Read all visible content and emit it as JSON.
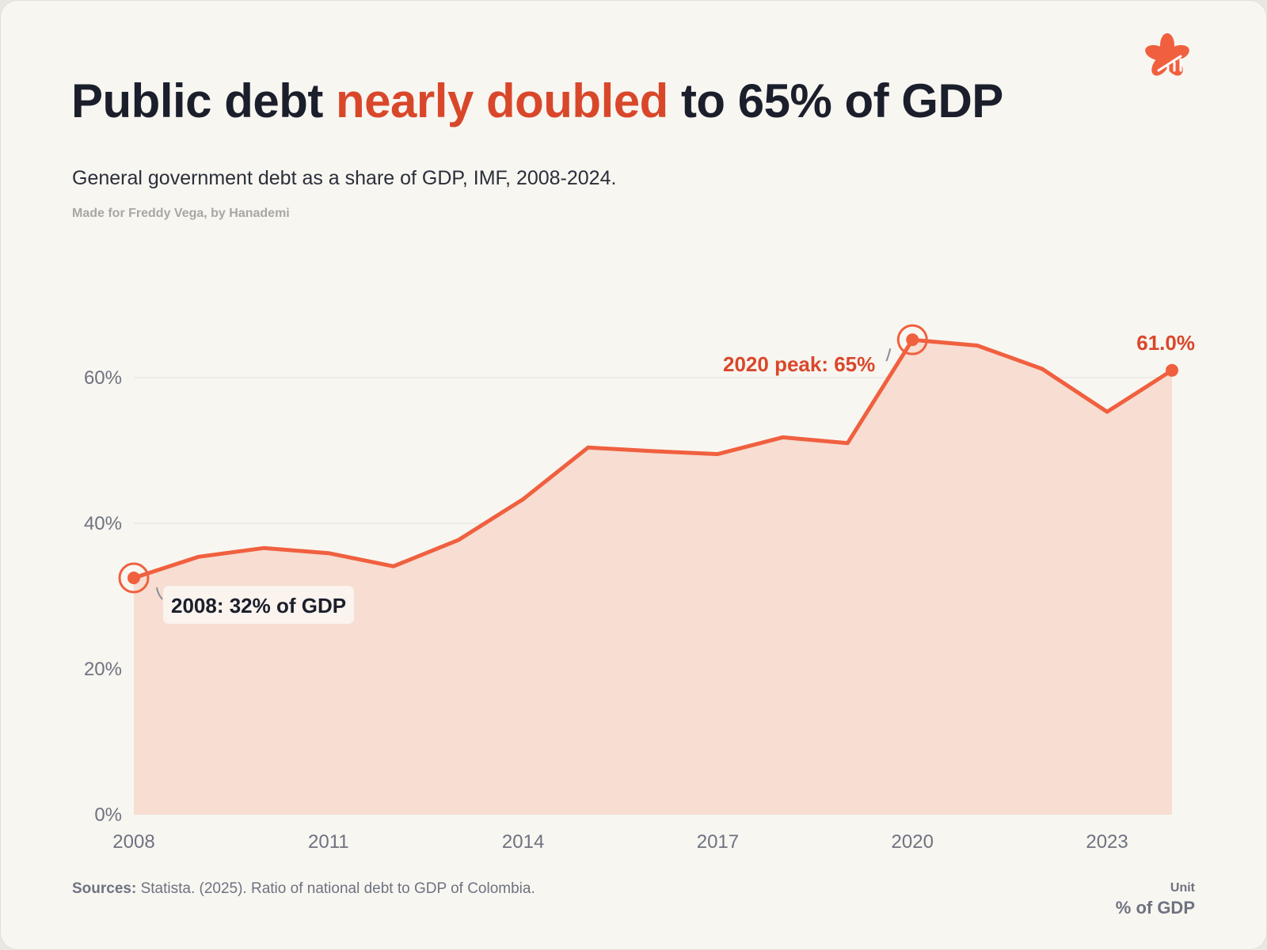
{
  "header": {
    "title_before": "Public debt ",
    "title_highlight": "nearly doubled",
    "title_after": " to 65% of GDP",
    "subtitle": "General government debt as a share of GDP, IMF, 2008-2024.",
    "credit": "Made for Freddy Vega, by Hanademi",
    "logo_icon": "flower-chart-logo-icon"
  },
  "footer": {
    "sources_label": "Sources:",
    "sources_text": " Statista. (2025). Ratio of national debt to GDP of Colombia.",
    "unit_label": "Unit",
    "unit_value": "% of GDP"
  },
  "colors": {
    "accent": "#f0603f",
    "accent_dark": "#d9472b",
    "area_fill": "#f7ddd2",
    "text_dark": "#1b1e2b",
    "axis_text": "#6f7280",
    "grid": "#e4e1da"
  },
  "chart_data": {
    "type": "area",
    "x": [
      2008,
      2009,
      2010,
      2011,
      2012,
      2013,
      2014,
      2015,
      2016,
      2017,
      2018,
      2019,
      2020,
      2021,
      2022,
      2023,
      2024
    ],
    "values": [
      32.5,
      35.4,
      36.6,
      35.9,
      34.1,
      37.7,
      43.3,
      50.4,
      49.9,
      49.5,
      51.8,
      51.0,
      65.2,
      64.4,
      61.2,
      55.3,
      61.0
    ],
    "xlim": [
      2008,
      2024
    ],
    "ylim": [
      0,
      75
    ],
    "x_ticks": [
      2008,
      2011,
      2014,
      2017,
      2020,
      2023
    ],
    "x_tick_labels": [
      "2008",
      "2011",
      "2014",
      "2017",
      "2020",
      "2023"
    ],
    "y_ticks": [
      0,
      20,
      40,
      60
    ],
    "y_tick_labels": [
      "0%",
      "20%",
      "40%",
      "60%"
    ],
    "grid": true,
    "annotations": [
      {
        "id": "start",
        "x": 2008,
        "y": 32.5,
        "text": "2008: 32% of GDP"
      },
      {
        "id": "peak",
        "x": 2020,
        "y": 65.2,
        "text": "2020 peak: 65%"
      },
      {
        "id": "last",
        "x": 2024,
        "y": 61.0,
        "text": "61.0%"
      }
    ]
  }
}
